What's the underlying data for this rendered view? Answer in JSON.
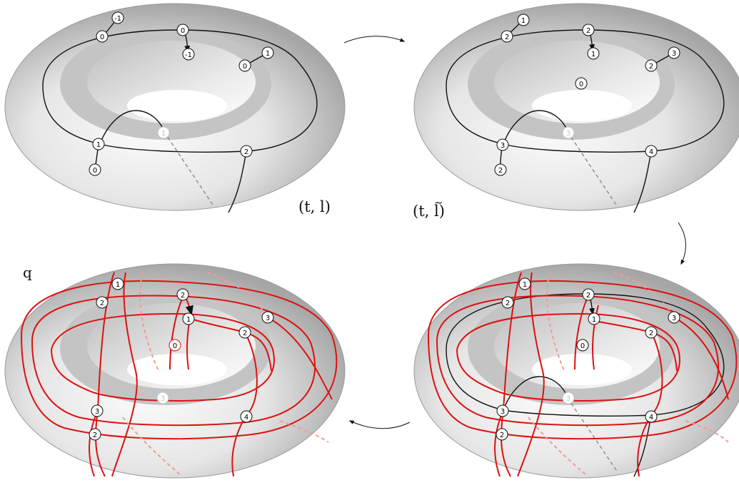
{
  "labels": {
    "panel1": "(t, l)",
    "panel2_prefix": "(t, ",
    "panel2_letter": "l",
    "panel2_tilde": "~",
    "panel2_suffix": ")",
    "panel4": "q"
  },
  "colors": {
    "curve_black": "#111111",
    "curve_red": "#dd1111",
    "curve_red_hidden": "#f29a9a",
    "curve_hidden_gray": "#8a8a8a",
    "torus_light": "#f7f7f7",
    "torus_dark": "#a9a9a9"
  },
  "panels": [
    {
      "id": "torus-1",
      "markers": [
        {
          "text": "-1",
          "hidden": false
        },
        {
          "text": "0",
          "hidden": false
        },
        {
          "text": "0",
          "hidden": false
        },
        {
          "text": "-1",
          "hidden": false
        },
        {
          "text": "1",
          "hidden": false
        },
        {
          "text": "0",
          "hidden": false
        },
        {
          "text": "1",
          "hidden": true
        },
        {
          "text": "1",
          "hidden": false
        },
        {
          "text": "0",
          "hidden": false
        },
        {
          "text": "2",
          "hidden": false
        }
      ]
    },
    {
      "id": "torus-2",
      "markers": [
        {
          "text": "1",
          "hidden": false
        },
        {
          "text": "2",
          "hidden": false
        },
        {
          "text": "2",
          "hidden": false
        },
        {
          "text": "1",
          "hidden": false
        },
        {
          "text": "3",
          "hidden": false
        },
        {
          "text": "2",
          "hidden": false
        },
        {
          "text": "0",
          "hidden": false
        },
        {
          "text": "3",
          "hidden": true
        },
        {
          "text": "3",
          "hidden": false
        },
        {
          "text": "2",
          "hidden": false
        },
        {
          "text": "4",
          "hidden": false
        }
      ]
    },
    {
      "id": "torus-3",
      "markers": [
        {
          "text": "1",
          "hidden": false
        },
        {
          "text": "2",
          "hidden": false
        },
        {
          "text": "2",
          "hidden": false
        },
        {
          "text": "1",
          "hidden": false
        },
        {
          "text": "3",
          "hidden": false
        },
        {
          "text": "2",
          "hidden": false
        },
        {
          "text": "0",
          "hidden": false
        },
        {
          "text": "3",
          "hidden": true
        },
        {
          "text": "3",
          "hidden": false
        },
        {
          "text": "2",
          "hidden": false
        },
        {
          "text": "4",
          "hidden": false
        }
      ]
    },
    {
      "id": "torus-4",
      "markers": [
        {
          "text": "1",
          "hidden": false
        },
        {
          "text": "2",
          "hidden": false
        },
        {
          "text": "2",
          "hidden": false
        },
        {
          "text": "1",
          "hidden": false
        },
        {
          "text": "3",
          "hidden": false
        },
        {
          "text": "2",
          "hidden": false
        },
        {
          "text": "0",
          "hidden": false
        },
        {
          "text": "3",
          "hidden": true
        },
        {
          "text": "3",
          "hidden": false
        },
        {
          "text": "2",
          "hidden": false
        },
        {
          "text": "4",
          "hidden": false
        }
      ]
    }
  ]
}
